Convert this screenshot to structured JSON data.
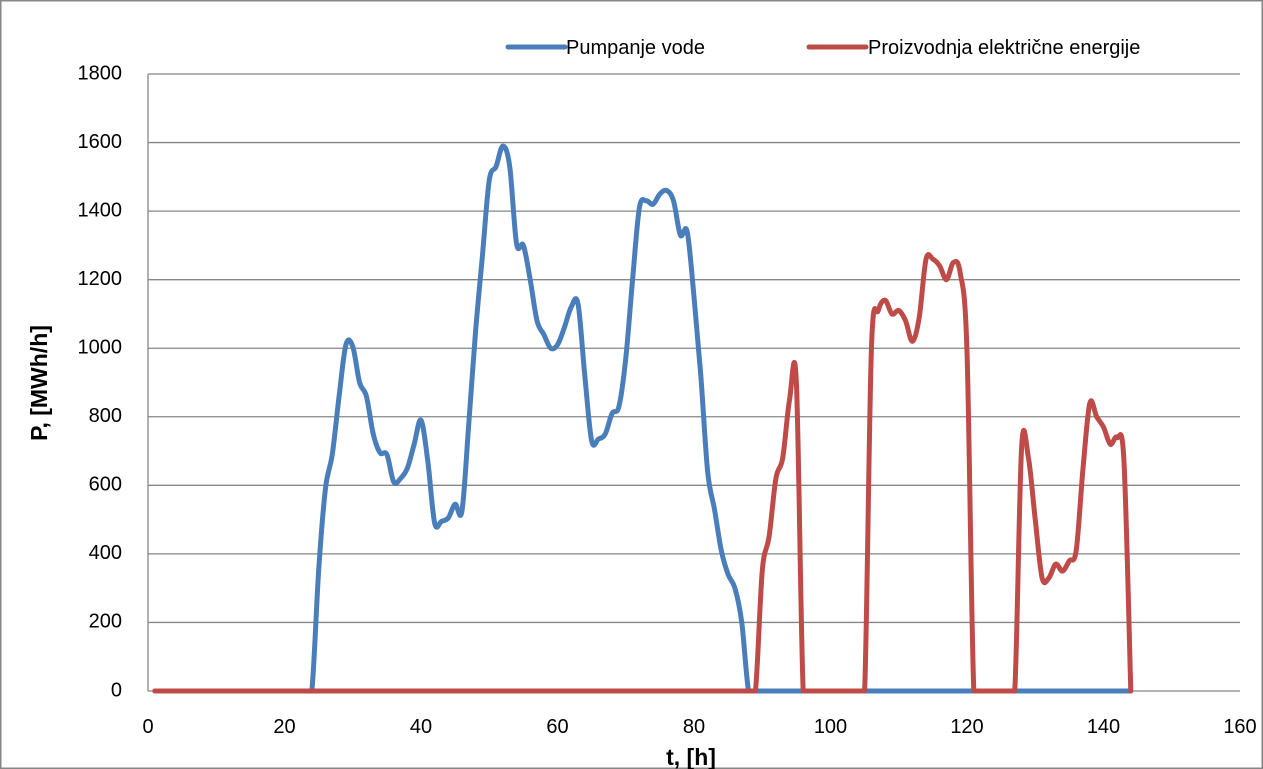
{
  "chart_data": {
    "type": "line",
    "title": "",
    "xlabel": "t, [h]",
    "ylabel": "P, [MWh/h]",
    "xlim": [
      0,
      160
    ],
    "ylim": [
      0,
      1800
    ],
    "x_ticks": [
      0,
      20,
      40,
      60,
      80,
      100,
      120,
      140,
      160
    ],
    "y_ticks": [
      0,
      200,
      400,
      600,
      800,
      1000,
      1200,
      1400,
      1600,
      1800
    ],
    "grid": "horizontal",
    "legend_position": "top-right",
    "series": [
      {
        "name": "Pumpanje vode",
        "color": "#4a7ebb",
        "x": [
          1,
          2,
          3,
          4,
          5,
          6,
          7,
          8,
          9,
          10,
          11,
          12,
          13,
          14,
          15,
          16,
          17,
          18,
          19,
          20,
          21,
          22,
          23,
          24,
          25,
          26,
          27,
          28,
          29,
          30,
          31,
          32,
          33,
          34,
          35,
          36,
          37,
          38,
          39,
          40,
          41,
          42,
          43,
          44,
          45,
          46,
          47,
          48,
          49,
          50,
          51,
          52,
          53,
          54,
          55,
          56,
          57,
          58,
          59,
          60,
          61,
          62,
          63,
          64,
          65,
          66,
          67,
          68,
          69,
          70,
          71,
          72,
          73,
          74,
          75,
          76,
          77,
          78,
          79,
          80,
          81,
          82,
          83,
          84,
          85,
          86,
          87,
          88,
          89,
          90,
          91,
          92,
          93,
          94,
          95,
          96,
          97,
          98,
          99,
          100,
          101,
          102,
          103,
          104,
          105,
          106,
          107,
          108,
          109,
          110,
          111,
          112,
          113,
          114,
          115,
          116,
          117,
          118,
          119,
          120,
          121,
          122,
          123,
          124,
          125,
          126,
          127,
          128,
          129,
          130,
          131,
          132,
          133,
          134,
          135,
          136,
          137,
          138,
          139,
          140,
          141,
          142,
          143,
          144
        ],
        "y": [
          0,
          0,
          0,
          0,
          0,
          0,
          0,
          0,
          0,
          0,
          0,
          0,
          0,
          0,
          0,
          0,
          0,
          0,
          0,
          0,
          0,
          0,
          0,
          0,
          350,
          590,
          690,
          860,
          1010,
          1005,
          900,
          860,
          750,
          695,
          690,
          610,
          620,
          650,
          720,
          790,
          670,
          490,
          495,
          505,
          545,
          525,
          780,
          1050,
          1270,
          1490,
          1530,
          1590,
          1530,
          1305,
          1300,
          1200,
          1080,
          1040,
          1000,
          1010,
          1060,
          1120,
          1130,
          920,
          730,
          735,
          750,
          810,
          830,
          970,
          1200,
          1410,
          1430,
          1420,
          1450,
          1460,
          1430,
          1330,
          1340,
          1150,
          920,
          640,
          530,
          410,
          340,
          300,
          200,
          0,
          0,
          0,
          0,
          0,
          0,
          0,
          0,
          0,
          0,
          0,
          0,
          0,
          0,
          0,
          0,
          0,
          0,
          0,
          0,
          0,
          0,
          0,
          0,
          0,
          0,
          0,
          0,
          0,
          0,
          0,
          0,
          0,
          0,
          0,
          0,
          0,
          0,
          0,
          0,
          0,
          0,
          0,
          0,
          0,
          0,
          0,
          0,
          0,
          0,
          0,
          0,
          0,
          0,
          0,
          0,
          0
        ]
      },
      {
        "name": "Proizvodnja električne energije",
        "color": "#be4b48",
        "x": [
          1,
          2,
          3,
          4,
          5,
          6,
          7,
          8,
          9,
          10,
          11,
          12,
          13,
          14,
          15,
          16,
          17,
          18,
          19,
          20,
          21,
          22,
          23,
          24,
          25,
          26,
          27,
          28,
          29,
          30,
          31,
          32,
          33,
          34,
          35,
          36,
          37,
          38,
          39,
          40,
          41,
          42,
          43,
          44,
          45,
          46,
          47,
          48,
          49,
          50,
          51,
          52,
          53,
          54,
          55,
          56,
          57,
          58,
          59,
          60,
          61,
          62,
          63,
          64,
          65,
          66,
          67,
          68,
          69,
          70,
          71,
          72,
          73,
          74,
          75,
          76,
          77,
          78,
          79,
          80,
          81,
          82,
          83,
          84,
          85,
          86,
          87,
          88,
          89,
          90,
          91,
          92,
          93,
          94,
          95,
          96,
          97,
          98,
          99,
          100,
          101,
          102,
          103,
          104,
          105,
          106,
          107,
          108,
          109,
          110,
          111,
          112,
          113,
          114,
          115,
          116,
          117,
          118,
          119,
          120,
          121,
          122,
          123,
          124,
          125,
          126,
          127,
          128,
          129,
          130,
          131,
          132,
          133,
          134,
          135,
          136,
          137,
          138,
          139,
          140,
          141,
          142,
          143,
          144
        ],
        "y": [
          0,
          0,
          0,
          0,
          0,
          0,
          0,
          0,
          0,
          0,
          0,
          0,
          0,
          0,
          0,
          0,
          0,
          0,
          0,
          0,
          0,
          0,
          0,
          0,
          0,
          0,
          0,
          0,
          0,
          0,
          0,
          0,
          0,
          0,
          0,
          0,
          0,
          0,
          0,
          0,
          0,
          0,
          0,
          0,
          0,
          0,
          0,
          0,
          0,
          0,
          0,
          0,
          0,
          0,
          0,
          0,
          0,
          0,
          0,
          0,
          0,
          0,
          0,
          0,
          0,
          0,
          0,
          0,
          0,
          0,
          0,
          0,
          0,
          0,
          0,
          0,
          0,
          0,
          0,
          0,
          0,
          0,
          0,
          0,
          0,
          0,
          0,
          0,
          0,
          350,
          450,
          620,
          680,
          850,
          900,
          0,
          0,
          0,
          0,
          0,
          0,
          0,
          0,
          0,
          0,
          1000,
          1110,
          1140,
          1100,
          1110,
          1080,
          1020,
          1090,
          1260,
          1260,
          1240,
          1200,
          1250,
          1220,
          990,
          0,
          0,
          0,
          0,
          0,
          0,
          0,
          710,
          680,
          500,
          330,
          330,
          370,
          350,
          380,
          410,
          650,
          840,
          800,
          770,
          720,
          740,
          670,
          0
        ]
      }
    ]
  }
}
